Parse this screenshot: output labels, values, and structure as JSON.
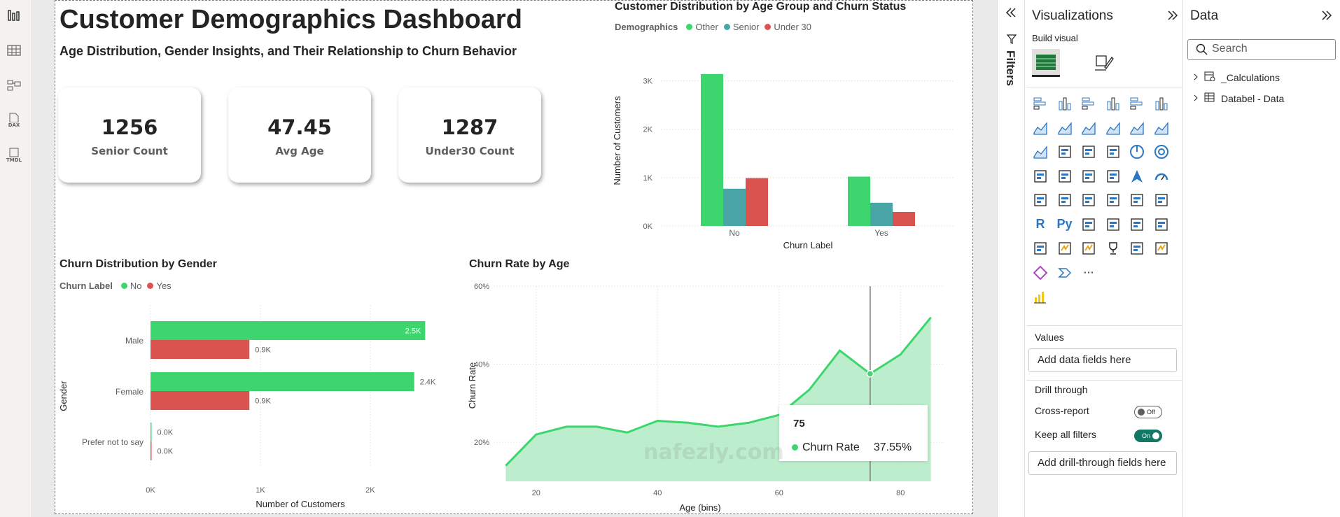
{
  "dashboard": {
    "title": "Customer Demographics Dashboard",
    "subtitle": "Age Distribution, Gender Insights, and Their Relationship to Churn Behavior"
  },
  "left_rail": {
    "dax_label": "DAX",
    "tmdl_label": "TMDL"
  },
  "cards": [
    {
      "value": "1256",
      "label": "Senior Count"
    },
    {
      "value": "47.45",
      "label": "Avg Age"
    },
    {
      "value": "1287",
      "label": "Under30 Count"
    }
  ],
  "colors": {
    "green": "#3dd56d",
    "teal": "#4aa6a6",
    "red": "#d9534f",
    "area": "#b5ecc8",
    "line": "#3dd56d"
  },
  "chart_data": [
    {
      "type": "bar",
      "title": "Customer Distribution by Age Group and Churn Status",
      "legend_title": "Demographics",
      "legend_position": "top-left",
      "xlabel": "Churn Label",
      "ylabel": "Number of Customers",
      "categories": [
        "No",
        "Yes"
      ],
      "series": [
        {
          "name": "Other",
          "values": [
            3140,
            1020
          ]
        },
        {
          "name": "Senior",
          "values": [
            770,
            480
          ]
        },
        {
          "name": "Under 30",
          "values": [
            990,
            290
          ]
        }
      ],
      "ylim": [
        0,
        3500
      ],
      "yticks": [
        "0K",
        "1K",
        "2K",
        "3K"
      ],
      "grid": true
    },
    {
      "type": "bar",
      "orientation": "horizontal",
      "title": "Churn Distribution by Gender",
      "legend_title": "Churn Label",
      "legend_position": "top-left",
      "xlabel": "Number of Customers",
      "ylabel": "Gender",
      "categories": [
        "Male",
        "Female",
        "Prefer not to say"
      ],
      "series": [
        {
          "name": "No",
          "values": [
            2500,
            2400,
            0
          ],
          "labels": [
            "2.5K",
            "2.4K",
            "0.0K"
          ]
        },
        {
          "name": "Yes",
          "values": [
            900,
            900,
            0
          ],
          "labels": [
            "0.9K",
            "0.9K",
            "0.0K"
          ]
        }
      ],
      "xlim": [
        0,
        2600
      ],
      "xticks": [
        "0K",
        "1K",
        "2K"
      ],
      "grid": true
    },
    {
      "type": "area",
      "title": "Churn Rate by Age",
      "xlabel": "Age (bins)",
      "ylabel": "Churn Rate",
      "x": [
        15,
        20,
        25,
        30,
        35,
        40,
        45,
        50,
        55,
        60,
        65,
        70,
        75,
        80,
        85
      ],
      "y": [
        14,
        22,
        24,
        24,
        22.5,
        25.5,
        25,
        24,
        25,
        27,
        33.5,
        43.5,
        37.55,
        42.5,
        52
      ],
      "xlim": [
        13,
        87
      ],
      "ylim": [
        10,
        60
      ],
      "xticks": [
        "20",
        "40",
        "60",
        "80"
      ],
      "yticks": [
        "20%",
        "40%",
        "60%"
      ],
      "grid": true,
      "hover_x": 75,
      "tooltip": {
        "title": "75",
        "label": "Churn Rate",
        "value": "37.55%"
      }
    }
  ],
  "watermark": "nafezly.com",
  "filters_pane": {
    "label": "Filters"
  },
  "visualizations_pane": {
    "title": "Visualizations",
    "build_visual": "Build visual",
    "values_label": "Values",
    "values_placeholder": "Add data fields here",
    "drill_through": "Drill through",
    "cross_report": "Cross-report",
    "cross_report_state": "Off",
    "keep_filters": "Keep all filters",
    "keep_filters_state": "On",
    "drill_placeholder": "Add drill-through fields here",
    "more": "···",
    "r_label": "R",
    "py_label": "Py"
  },
  "data_pane": {
    "title": "Data",
    "search_placeholder": "Search",
    "items": [
      "_Calculations",
      "Databel - Data"
    ]
  }
}
